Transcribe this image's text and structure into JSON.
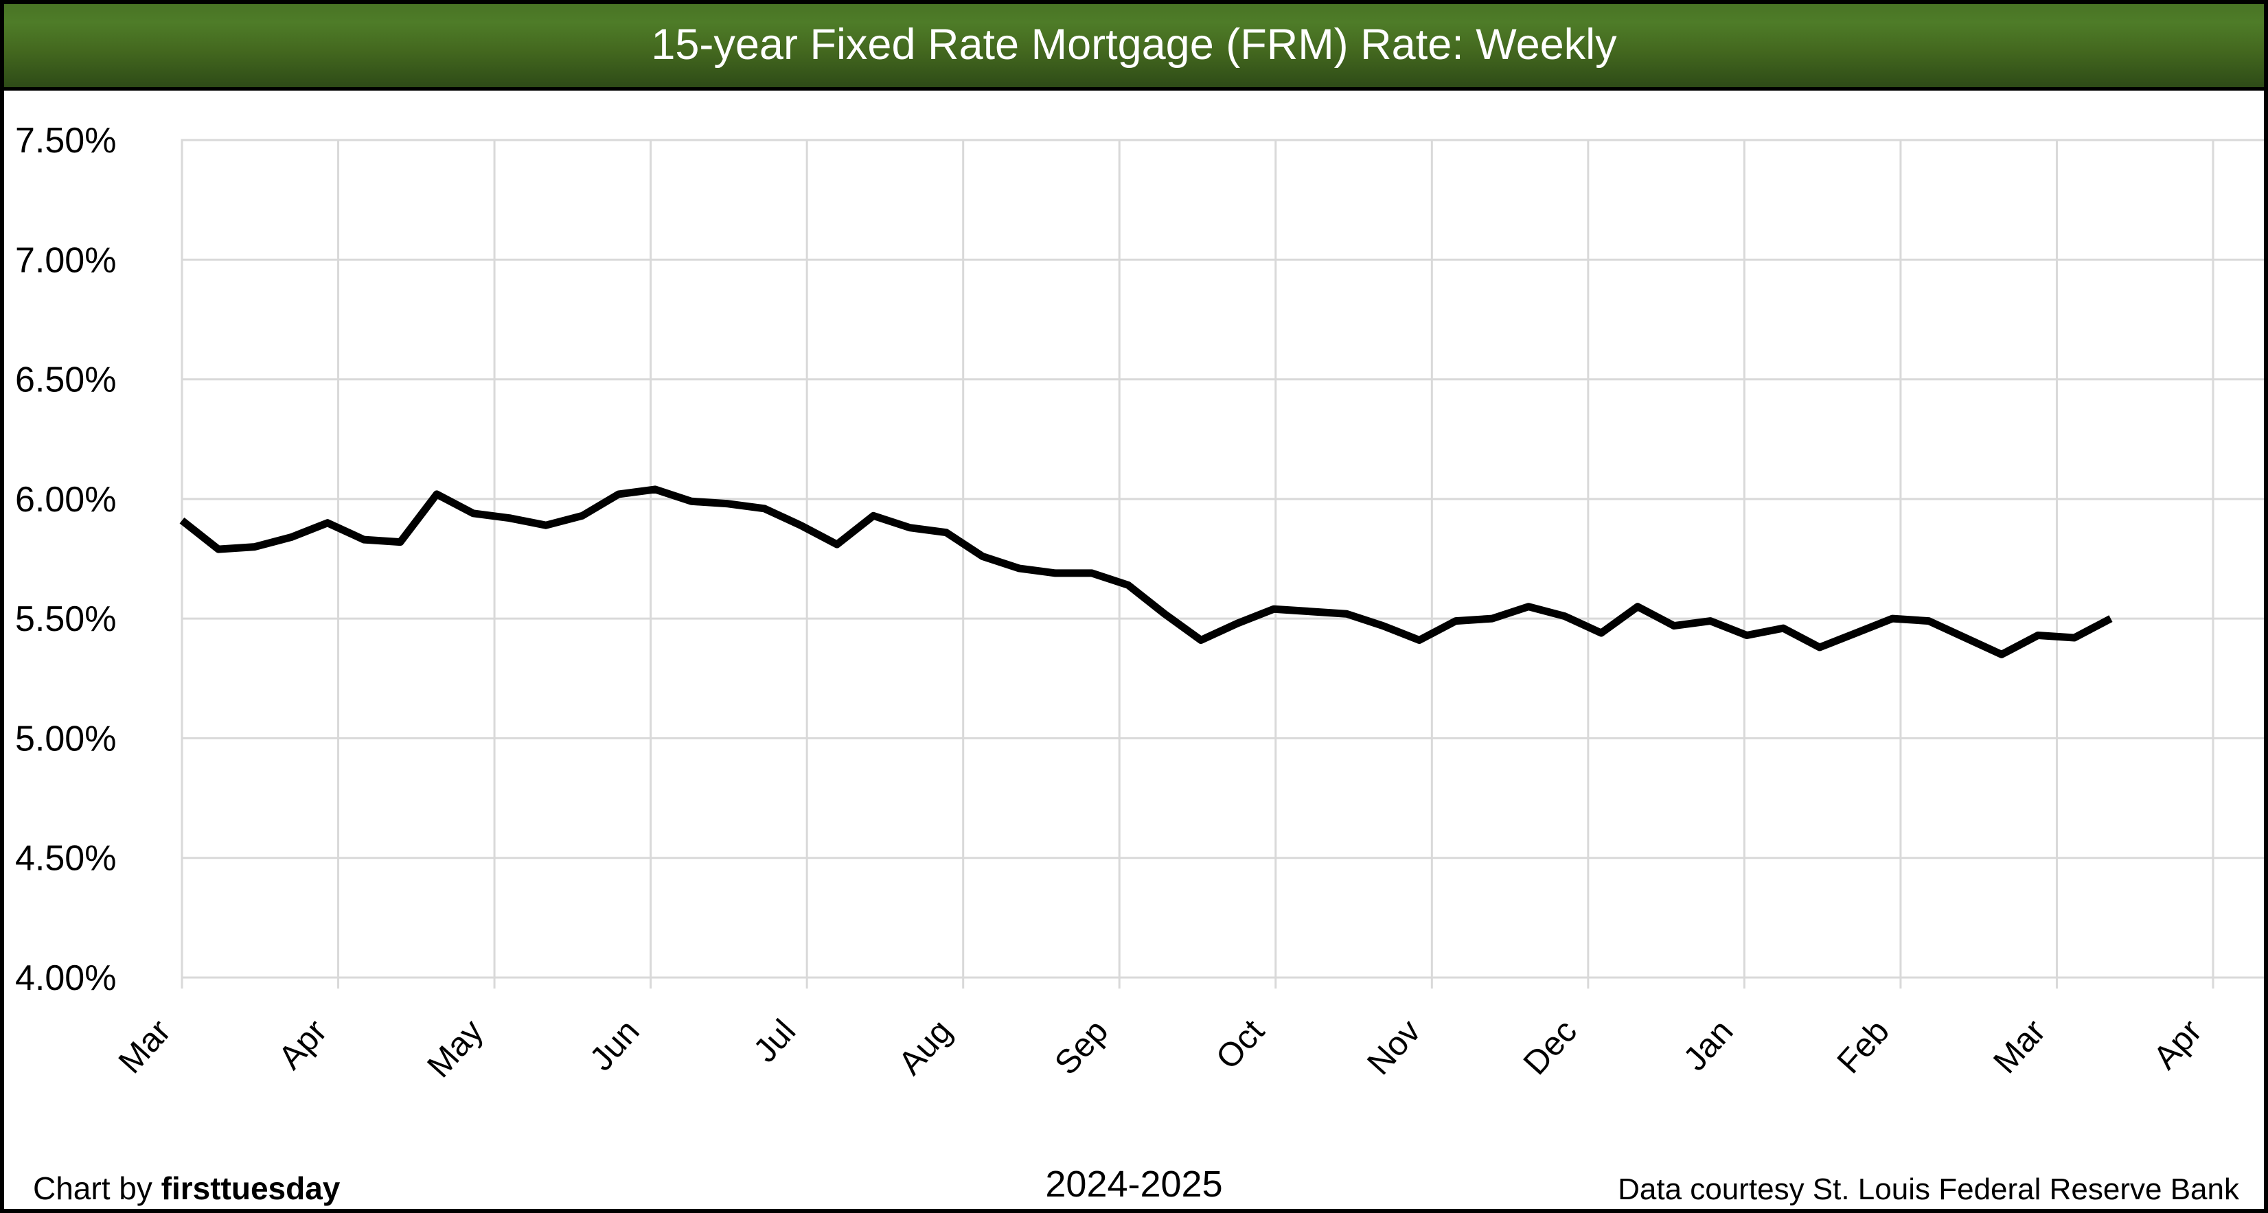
{
  "header": {
    "title": "15-year Fixed Rate Mortgage (FRM) Rate: Weekly",
    "bg_color_top": "#497425",
    "bg_color_mid": "#4e7c28",
    "bg_color_bottom": "#2e4b17",
    "text_color": "#ffffff"
  },
  "chart_data": {
    "type": "line",
    "title": "15-year Fixed Rate Mortgage (FRM) Rate: Weekly",
    "frequency": "weekly",
    "x_tick_labels": [
      "Mar",
      "Apr",
      "May",
      "Jun",
      "Jul",
      "Aug",
      "Sep",
      "Oct",
      "Nov",
      "Dec",
      "Jan",
      "Feb",
      "Mar",
      "Apr"
    ],
    "x_axis_period": "2024-2025",
    "y_tick_labels": [
      "7.50%",
      "7.00%",
      "6.50%",
      "6.00%",
      "5.50%",
      "5.00%",
      "4.50%",
      "4.00%"
    ],
    "ylim": [
      4.0,
      7.5
    ],
    "y_step": 0.5,
    "grid": true,
    "legend": "none",
    "line_color": "#000000",
    "grid_color": "#d9d9d9",
    "values": [
      5.91,
      5.79,
      5.8,
      5.84,
      5.9,
      5.83,
      5.82,
      6.02,
      5.94,
      5.92,
      5.89,
      5.93,
      6.02,
      6.04,
      5.99,
      5.98,
      5.96,
      5.89,
      5.81,
      5.93,
      5.88,
      5.86,
      5.76,
      5.71,
      5.69,
      5.69,
      5.64,
      5.52,
      5.41,
      5.48,
      5.54,
      5.53,
      5.52,
      5.47,
      5.41,
      5.49,
      5.5,
      5.55,
      5.51,
      5.44,
      5.55,
      5.47,
      5.49,
      5.43,
      5.46,
      5.38,
      5.44,
      5.5,
      5.49,
      5.42,
      5.35,
      5.43,
      5.42,
      5.5
    ]
  },
  "footer": {
    "credit_prefix": "Chart by ",
    "credit_brand": "firsttuesday",
    "period": "2024-2025",
    "source": "Data courtesy St. Louis Federal Reserve Bank"
  }
}
